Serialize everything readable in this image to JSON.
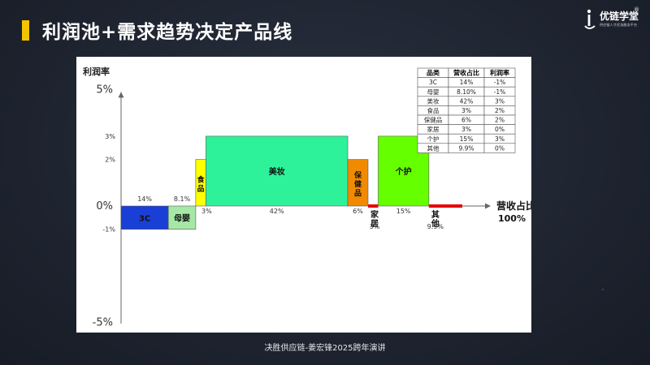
{
  "header": {
    "title": "利润池+需求趋势决定产品线",
    "accent_color": "#f4c400"
  },
  "logo": {
    "name": "优链学堂",
    "registered": "®",
    "tagline": "供应链人才优选服务平台"
  },
  "footer": {
    "caption": "决胜供应链-姜宏锋2025跨年演讲"
  },
  "chart_data": {
    "type": "variable-width-bar",
    "title": "",
    "ylabel": "利润率",
    "xlabel_lines": [
      "营收占比",
      "100%"
    ],
    "ylim": [
      -5,
      5
    ],
    "y_ticks_major": [
      {
        "value": 5,
        "label": "5%"
      },
      {
        "value": 0,
        "label": "0%"
      },
      {
        "value": -5,
        "label": "-5%"
      }
    ],
    "y_ticks_minor": [
      {
        "value": 3,
        "label": "3%"
      },
      {
        "value": 2,
        "label": "2%"
      },
      {
        "value": -1,
        "label": "-1%"
      }
    ],
    "categories": [
      "3C",
      "母婴",
      "食品",
      "美妆",
      "保健品",
      "家居",
      "个护",
      "其他"
    ],
    "share": [
      14,
      8.1,
      3,
      42,
      6,
      3,
      15,
      9.9
    ],
    "share_labels": [
      "14%",
      "8.1%",
      "3%",
      "42%",
      "6%",
      "3%",
      "15%",
      "9.9%"
    ],
    "margin": [
      -1,
      -1,
      2,
      3,
      2,
      0,
      3,
      0
    ],
    "colors": [
      "#1a3fd6",
      "#a6e8a6",
      "#ffff00",
      "#2ef29a",
      "#f08a00",
      "#e60000",
      "#66ff00",
      "#e60000"
    ],
    "table": {
      "headers": [
        "品类",
        "营收占比",
        "利润率"
      ],
      "rows": [
        [
          "3C",
          "14%",
          "-1%"
        ],
        [
          "母婴",
          "8.10%",
          "-1%"
        ],
        [
          "美妆",
          "42%",
          "3%"
        ],
        [
          "食品",
          "3%",
          "2%"
        ],
        [
          "保健品",
          "6%",
          "2%"
        ],
        [
          "家居",
          "3%",
          "0%"
        ],
        [
          "个护",
          "15%",
          "3%"
        ],
        [
          "其他",
          "9.9%",
          "0%"
        ]
      ]
    }
  }
}
